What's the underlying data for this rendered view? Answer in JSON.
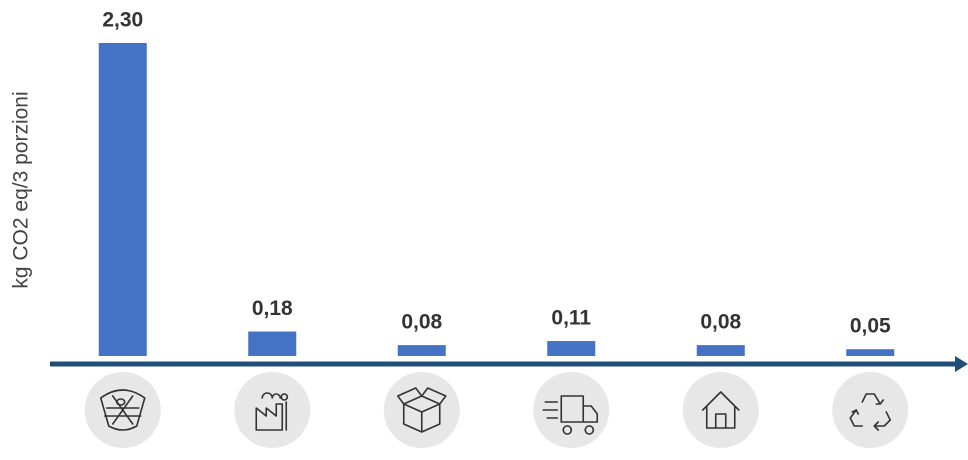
{
  "chart_data": {
    "type": "bar",
    "y_axis_label": "kg CO2 eq/3 porzioni",
    "categories": [
      null,
      null,
      null,
      null,
      null,
      null
    ],
    "values": [
      2.3,
      0.18,
      0.08,
      0.11,
      0.08,
      0.05
    ],
    "value_labels": [
      "2,30",
      "0,18",
      "0,08",
      "0,11",
      "0,08",
      "0,05"
    ],
    "color": "#4472c4",
    "ylim": [
      0,
      2.3
    ]
  }
}
